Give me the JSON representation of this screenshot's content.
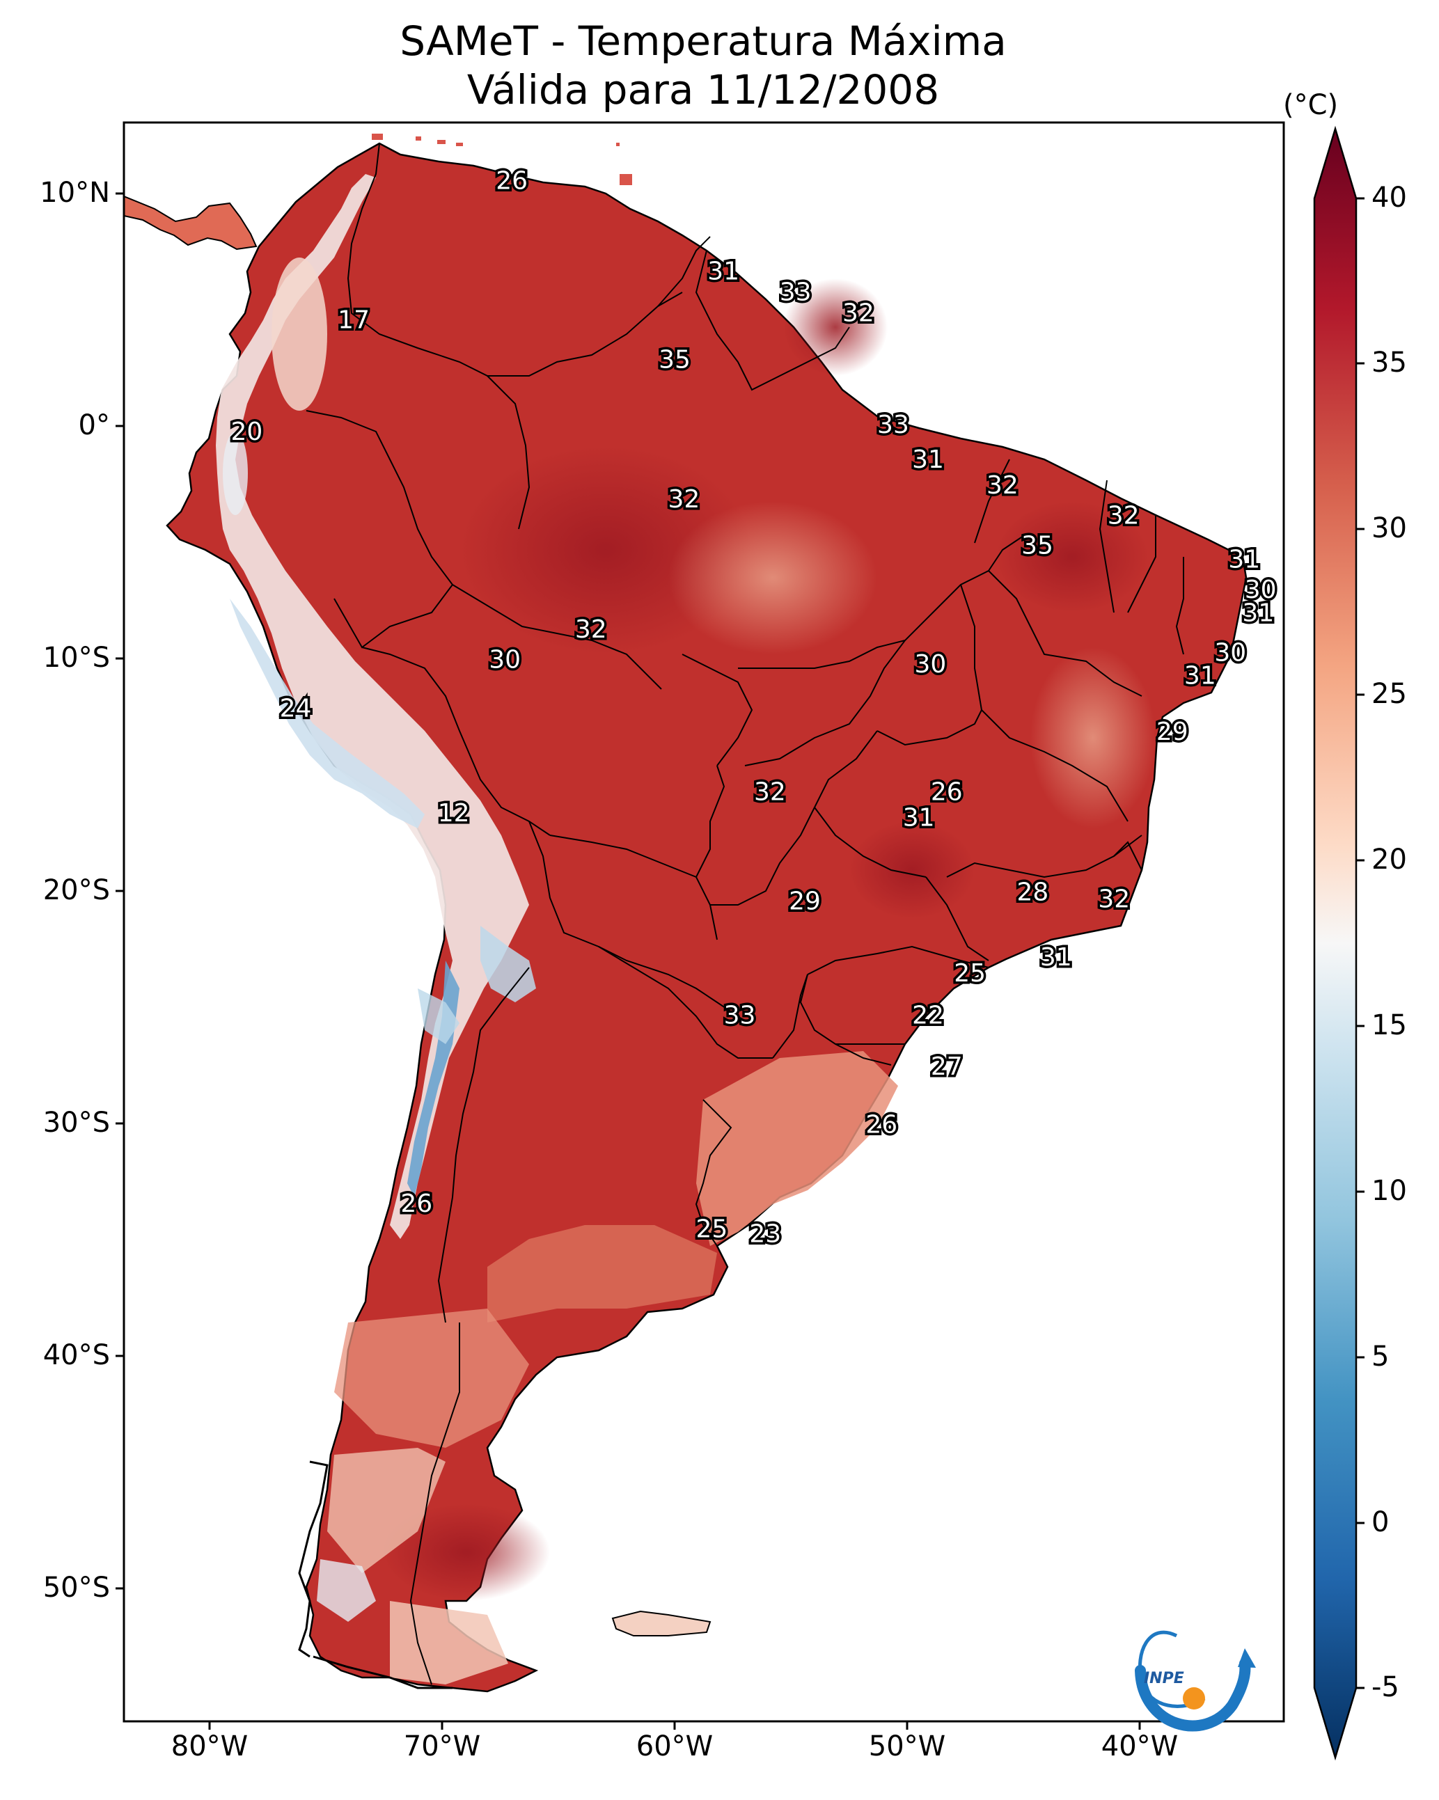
{
  "title": "SAMeT - Temperatura Máxima",
  "subtitle": "Válida para 11/12/2008",
  "colorbar": {
    "unit": "(°C)",
    "ticks": [
      "40",
      "35",
      "30",
      "25",
      "20",
      "15",
      "10",
      "5",
      "0",
      "-5"
    ],
    "range": [
      -5,
      40
    ]
  },
  "axes": {
    "lat_labels": [
      "10°N",
      "0°",
      "10°S",
      "20°S",
      "30°S",
      "40°S",
      "50°S"
    ],
    "lon_labels": [
      "80°W",
      "70°W",
      "60°W",
      "50°W",
      "40°W"
    ]
  },
  "logo_text": "INPE",
  "colors": {
    "land_hot": "#c0302d",
    "land_dark": "#9e1a22",
    "land_mild": "#e4826a",
    "land_cool": "#f6ddd0",
    "cold": "#bcd8ea",
    "cold_dark": "#6aa4cf"
  },
  "point_labels": [
    {
      "value": "26",
      "lon": -67,
      "lat": 10.5
    },
    {
      "value": "31",
      "lon": -57.9,
      "lat": 6.6
    },
    {
      "value": "33",
      "lon": -54.8,
      "lat": 5.7
    },
    {
      "value": "32",
      "lon": -52.1,
      "lat": 4.8
    },
    {
      "value": "17",
      "lon": -73.8,
      "lat": 4.5
    },
    {
      "value": "35",
      "lon": -60,
      "lat": 2.8
    },
    {
      "value": "20",
      "lon": -78.4,
      "lat": -0.3
    },
    {
      "value": "33",
      "lon": -50.6,
      "lat": 0
    },
    {
      "value": "31",
      "lon": -49.1,
      "lat": -1.5
    },
    {
      "value": "32",
      "lon": -59.6,
      "lat": -3.2
    },
    {
      "value": "32",
      "lon": -45.9,
      "lat": -2.6
    },
    {
      "value": "32",
      "lon": -40.7,
      "lat": -3.9
    },
    {
      "value": "35",
      "lon": -44.4,
      "lat": -5.2
    },
    {
      "value": "31",
      "lon": -35.5,
      "lat": -5.8
    },
    {
      "value": "30",
      "lon": -34.8,
      "lat": -7.1
    },
    {
      "value": "31",
      "lon": -34.9,
      "lat": -8.1
    },
    {
      "value": "32",
      "lon": -63.6,
      "lat": -8.8
    },
    {
      "value": "30",
      "lon": -67.3,
      "lat": -10.1
    },
    {
      "value": "30",
      "lon": -49,
      "lat": -10.3
    },
    {
      "value": "30",
      "lon": -36.1,
      "lat": -9.8
    },
    {
      "value": "31",
      "lon": -37.4,
      "lat": -10.8
    },
    {
      "value": "24",
      "lon": -76.3,
      "lat": -12.2
    },
    {
      "value": "29",
      "lon": -38.6,
      "lat": -13.2
    },
    {
      "value": "26",
      "lon": -48.3,
      "lat": -15.8
    },
    {
      "value": "32",
      "lon": -55.9,
      "lat": -15.8
    },
    {
      "value": "31",
      "lon": -49.5,
      "lat": -16.9
    },
    {
      "value": "12",
      "lon": -69.5,
      "lat": -16.7
    },
    {
      "value": "28",
      "lon": -44.6,
      "lat": -20.1
    },
    {
      "value": "29",
      "lon": -54.4,
      "lat": -20.5
    },
    {
      "value": "32",
      "lon": -41.1,
      "lat": -20.4
    },
    {
      "value": "31",
      "lon": -43.6,
      "lat": -22.9
    },
    {
      "value": "25",
      "lon": -47.3,
      "lat": -23.6
    },
    {
      "value": "22",
      "lon": -49.1,
      "lat": -25.4
    },
    {
      "value": "33",
      "lon": -57.2,
      "lat": -25.4
    },
    {
      "value": "27",
      "lon": -48.3,
      "lat": -27.6
    },
    {
      "value": "26",
      "lon": -51.1,
      "lat": -30.1
    },
    {
      "value": "26",
      "lon": -71.1,
      "lat": -33.5
    },
    {
      "value": "25",
      "lon": -58.4,
      "lat": -34.6
    },
    {
      "value": "23",
      "lon": -56.1,
      "lat": -34.8
    }
  ]
}
